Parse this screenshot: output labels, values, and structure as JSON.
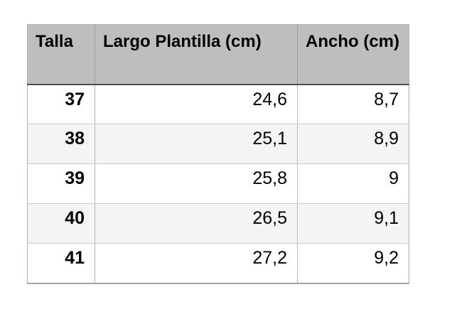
{
  "table": {
    "headers": [
      "Talla",
      "Largo Plantilla (cm)",
      "Ancho (cm)"
    ],
    "rows": [
      [
        "37",
        "24,6",
        "8,7"
      ],
      [
        "38",
        "25,1",
        "8,9"
      ],
      [
        "39",
        "25,8",
        "9"
      ],
      [
        "40",
        "26,5",
        "9,1"
      ],
      [
        "41",
        "27,2",
        "9,2"
      ]
    ]
  },
  "colors": {
    "header_bg": "#bdbfbe",
    "header_divider": "#4f4f4f",
    "row_bg": "#ffffff",
    "row_alt_bg": "#f4f4f5",
    "grid_line": "#c9c9c9",
    "outer_border": "#adadad",
    "text": "#000000"
  },
  "chart_data": {
    "type": "table",
    "title": "",
    "columns": [
      "Talla",
      "Largo Plantilla (cm)",
      "Ancho (cm)"
    ],
    "rows": [
      [
        37,
        24.6,
        8.7
      ],
      [
        38,
        25.1,
        8.9
      ],
      [
        39,
        25.8,
        9.0
      ],
      [
        40,
        26.5,
        9.1
      ],
      [
        41,
        27.2,
        9.2
      ]
    ]
  }
}
